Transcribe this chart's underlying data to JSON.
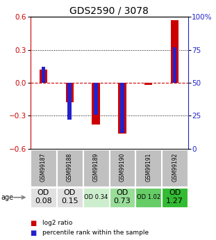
{
  "title": "GDS2590 / 3078",
  "samples": [
    "GSM99187",
    "GSM99188",
    "GSM99189",
    "GSM99190",
    "GSM99191",
    "GSM99192"
  ],
  "log2_ratio": [
    0.12,
    -0.18,
    -0.38,
    -0.46,
    -0.02,
    0.57
  ],
  "percentile_rank_pct": [
    62,
    22,
    26,
    12,
    50,
    77
  ],
  "ylim_left": [
    -0.6,
    0.6
  ],
  "ylim_right": [
    0,
    100
  ],
  "yticks_left": [
    -0.6,
    -0.3,
    0.0,
    0.3,
    0.6
  ],
  "yticks_right": [
    0,
    25,
    50,
    75,
    100
  ],
  "bar_color_red": "#cc0000",
  "bar_color_blue": "#2222cc",
  "dotted_line_color": "#333333",
  "red_dashed_color": "#cc0000",
  "age_labels": [
    "OD\n0.08",
    "OD\n0.15",
    "OD 0.34",
    "OD\n0.73",
    "OD 1.02",
    "OD\n1.27"
  ],
  "age_label_fontsize": [
    8,
    8,
    6,
    8,
    6,
    8
  ],
  "age_bg_colors": [
    "#e0e0e0",
    "#e0e0e0",
    "#cceecc",
    "#99dd99",
    "#66cc66",
    "#33bb33"
  ],
  "sample_bg_color": "#c0c0c0",
  "legend_red": "log2 ratio",
  "legend_blue": "percentile rank within the sample",
  "title_fontsize": 10,
  "tick_fontsize": 7.5
}
